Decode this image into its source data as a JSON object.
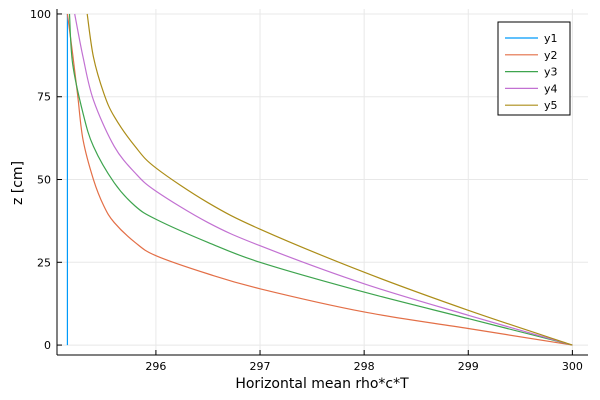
{
  "chart_data": {
    "type": "line",
    "title": "",
    "xlabel": "Horizontal mean rho*c*T",
    "ylabel": "z [cm]",
    "xlim": [
      295.05,
      300.15
    ],
    "ylim": [
      -3,
      101.5
    ],
    "x_ticks": [
      296,
      297,
      298,
      299,
      300
    ],
    "y_ticks": [
      0,
      25,
      50,
      75,
      100
    ],
    "x_tick_labels": [
      "296",
      "297",
      "298",
      "299",
      "300"
    ],
    "y_tick_labels": [
      "0",
      "25",
      "50",
      "75",
      "100"
    ],
    "grid": true,
    "legend_position": "top-right",
    "series": [
      {
        "name": "y1",
        "color": "#009AFA",
        "points": [
          [
            295.15,
            0
          ],
          [
            295.15,
            25
          ],
          [
            295.15,
            50
          ],
          [
            295.15,
            75
          ],
          [
            295.15,
            100
          ]
        ]
      },
      {
        "name": "y2",
        "color": "#E36F47",
        "points": [
          [
            300,
            0
          ],
          [
            299,
            5
          ],
          [
            298,
            10
          ],
          [
            297,
            17
          ],
          [
            296.5,
            21.5
          ],
          [
            296,
            27
          ],
          [
            295.8,
            31
          ],
          [
            295.6,
            37
          ],
          [
            295.5,
            42
          ],
          [
            295.4,
            50
          ],
          [
            295.3,
            62
          ],
          [
            295.25,
            75
          ],
          [
            295.2,
            88
          ],
          [
            295.15,
            100
          ]
        ]
      },
      {
        "name": "y3",
        "color": "#3EA44E",
        "points": [
          [
            300,
            0
          ],
          [
            299,
            8
          ],
          [
            298,
            16
          ],
          [
            297,
            25
          ],
          [
            296.5,
            31
          ],
          [
            296,
            38
          ],
          [
            295.8,
            42
          ],
          [
            295.6,
            49
          ],
          [
            295.4,
            60
          ],
          [
            295.3,
            70
          ],
          [
            295.2,
            85
          ],
          [
            295.17,
            100
          ]
        ]
      },
      {
        "name": "y4",
        "color": "#C271D2",
        "points": [
          [
            300,
            0
          ],
          [
            299,
            9
          ],
          [
            298,
            18.5
          ],
          [
            297,
            30
          ],
          [
            296.5,
            37
          ],
          [
            296,
            46.5
          ],
          [
            295.8,
            52
          ],
          [
            295.6,
            60
          ],
          [
            295.4,
            74
          ],
          [
            295.3,
            87
          ],
          [
            295.22,
            100
          ]
        ]
      },
      {
        "name": "y5",
        "color": "#AC8D18",
        "points": [
          [
            300,
            0
          ],
          [
            299,
            10.5
          ],
          [
            298,
            22
          ],
          [
            297,
            35
          ],
          [
            296.5,
            43
          ],
          [
            296,
            53.5
          ],
          [
            295.8,
            60
          ],
          [
            295.6,
            69
          ],
          [
            295.5,
            76
          ],
          [
            295.4,
            87
          ],
          [
            295.34,
            100
          ]
        ]
      }
    ]
  }
}
